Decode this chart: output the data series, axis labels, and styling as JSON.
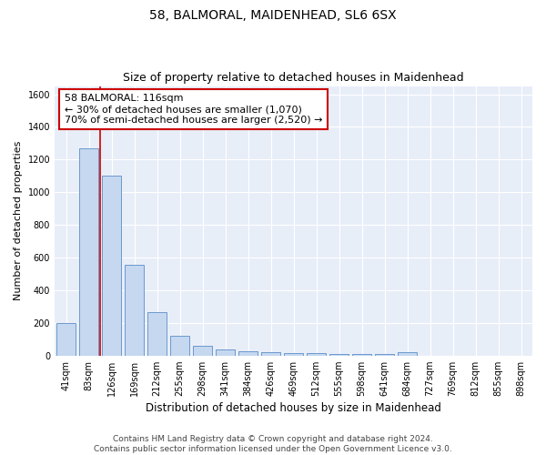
{
  "title1": "58, BALMORAL, MAIDENHEAD, SL6 6SX",
  "title2": "Size of property relative to detached houses in Maidenhead",
  "xlabel": "Distribution of detached houses by size in Maidenhead",
  "ylabel": "Number of detached properties",
  "categories": [
    "41sqm",
    "83sqm",
    "126sqm",
    "169sqm",
    "212sqm",
    "255sqm",
    "298sqm",
    "341sqm",
    "384sqm",
    "426sqm",
    "469sqm",
    "512sqm",
    "555sqm",
    "598sqm",
    "641sqm",
    "684sqm",
    "727sqm",
    "769sqm",
    "812sqm",
    "855sqm",
    "898sqm"
  ],
  "values": [
    200,
    1270,
    1100,
    555,
    265,
    120,
    58,
    35,
    25,
    18,
    15,
    15,
    10,
    10,
    10,
    18,
    0,
    0,
    0,
    0,
    0
  ],
  "bar_color": "#c5d8f0",
  "bar_edge_color": "#5b8dc8",
  "annotation_text": "58 BALMORAL: 116sqm\n← 30% of detached houses are smaller (1,070)\n70% of semi-detached houses are larger (2,520) →",
  "annotation_box_color": "white",
  "annotation_box_edge_color": "#cc0000",
  "red_line_color": "#cc0000",
  "ylim": [
    0,
    1650
  ],
  "yticks": [
    0,
    200,
    400,
    600,
    800,
    1000,
    1200,
    1400,
    1600
  ],
  "background_color": "#e8eef8",
  "grid_color": "white",
  "footer_line1": "Contains HM Land Registry data © Crown copyright and database right 2024.",
  "footer_line2": "Contains public sector information licensed under the Open Government Licence v3.0.",
  "title1_fontsize": 10,
  "title2_fontsize": 9,
  "xlabel_fontsize": 8.5,
  "ylabel_fontsize": 8,
  "tick_fontsize": 7,
  "annotation_fontsize": 8,
  "footer_fontsize": 6.5
}
